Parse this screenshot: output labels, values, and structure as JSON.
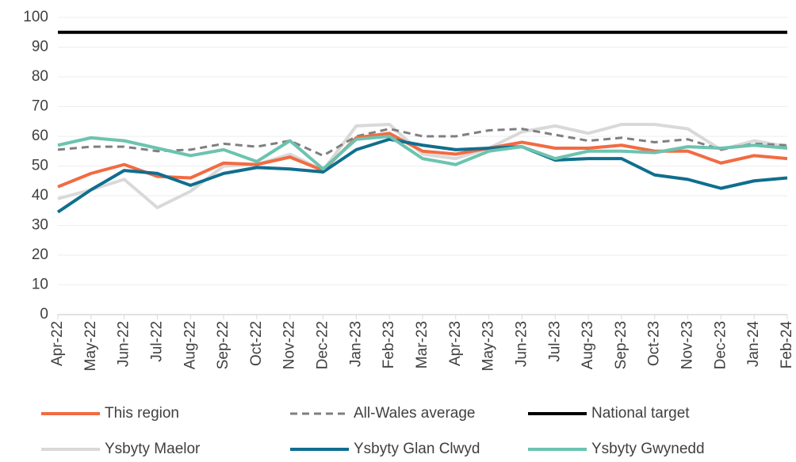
{
  "chart_data": {
    "type": "line",
    "categories": [
      "Apr-22",
      "May-22",
      "Jun-22",
      "Jul-22",
      "Aug-22",
      "Sep-22",
      "Oct-22",
      "Nov-22",
      "Dec-22",
      "Jan-23",
      "Feb-23",
      "Mar-23",
      "Apr-23",
      "May-23",
      "Jun-23",
      "Jul-23",
      "Aug-23",
      "Sep-23",
      "Oct-23",
      "Nov-23",
      "Dec-23",
      "Jan-24",
      "Feb-24"
    ],
    "ylim": [
      0,
      100
    ],
    "yticks": [
      0,
      10,
      20,
      30,
      40,
      50,
      60,
      70,
      80,
      90,
      100
    ],
    "grid": true,
    "legend": "bottom",
    "series": [
      {
        "name": "National target",
        "color": "#000000",
        "values": [
          95,
          95,
          95,
          95,
          95,
          95,
          95,
          95,
          95,
          95,
          95,
          95,
          95,
          95,
          95,
          95,
          95,
          95,
          95,
          95,
          95,
          95,
          95
        ]
      },
      {
        "name": "Ysbyty Maelor",
        "color": "#d9d9d9",
        "values": [
          39,
          42,
          45.5,
          36,
          41.5,
          50,
          50.5,
          54,
          48.5,
          63.5,
          64,
          54,
          52.5,
          56,
          61.5,
          63.5,
          61,
          64,
          64,
          62.5,
          55.5,
          58.5,
          56.5
        ]
      },
      {
        "name": "All-Wales average",
        "color": "#7f7f7f",
        "dashed": true,
        "values": [
          55.5,
          56.5,
          56.5,
          55,
          55.5,
          57.5,
          56.5,
          58.5,
          53.5,
          60,
          62.5,
          60,
          60,
          62,
          62.5,
          60.5,
          58.5,
          59.5,
          58,
          59,
          55.5,
          57.5,
          57
        ]
      },
      {
        "name": "This region",
        "color": "#f26b43",
        "values": [
          43,
          47.5,
          50.5,
          46.5,
          46,
          51,
          50.5,
          53,
          48.5,
          59.5,
          61,
          55,
          54,
          56,
          58,
          56,
          56,
          57,
          55,
          55,
          51,
          53.5,
          52.5
        ]
      },
      {
        "name": "Ysbyty Glan Clwyd",
        "color": "#106e8e",
        "values": [
          34.5,
          42,
          48.5,
          47.5,
          43.5,
          47.5,
          49.5,
          49,
          48,
          55.5,
          59,
          57,
          55.5,
          56,
          56.5,
          52,
          52.5,
          52.5,
          47,
          45.5,
          42.5,
          45,
          46
        ]
      },
      {
        "name": "Ysbyty Gwynedd",
        "color": "#6cc3b0",
        "values": [
          57,
          59.5,
          58.5,
          56,
          53.5,
          55.5,
          51.5,
          58.5,
          49,
          59,
          60,
          52.5,
          50.5,
          55,
          56.5,
          52.5,
          55,
          55,
          54.5,
          56.5,
          56,
          57,
          56
        ]
      }
    ]
  }
}
